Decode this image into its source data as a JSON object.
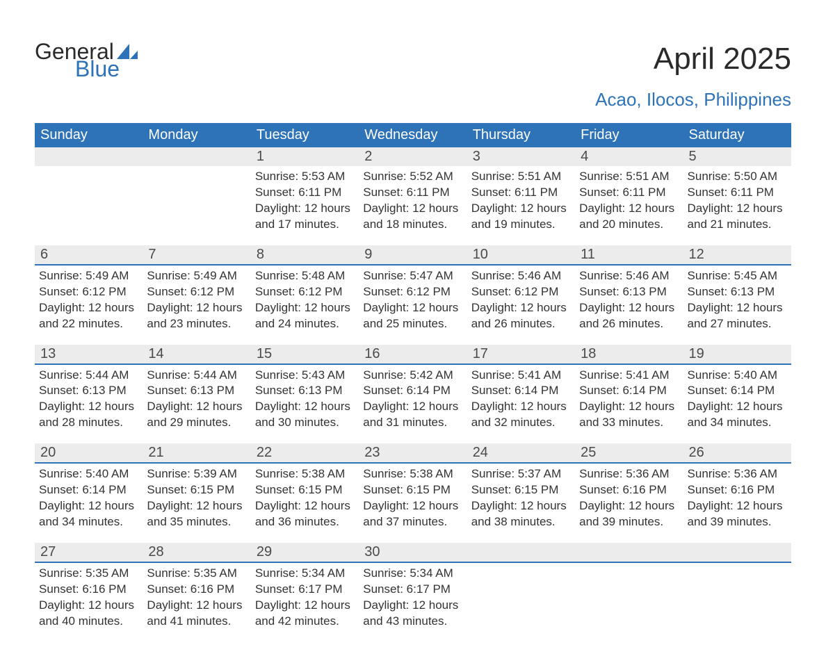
{
  "logo": {
    "word1": "General",
    "word2": "Blue",
    "accent_color": "#2e72b8",
    "text_color": "#2a2a2a"
  },
  "title": "April 2025",
  "location": "Acao, Ilocos, Philippines",
  "colors": {
    "header_bg": "#2e72b8",
    "header_text": "#ffffff",
    "daynum_bg": "#ececec",
    "row_divider": "#2e72b8",
    "body_text": "#333333",
    "page_bg": "#ffffff"
  },
  "typography": {
    "title_fontsize": 44,
    "location_fontsize": 26,
    "weekday_header_fontsize": 20,
    "daynum_fontsize": 20,
    "cell_fontsize": 17
  },
  "weekdays": [
    "Sunday",
    "Monday",
    "Tuesday",
    "Wednesday",
    "Thursday",
    "Friday",
    "Saturday"
  ],
  "weeks": [
    [
      {
        "num": "",
        "sunrise": "",
        "sunset": "",
        "daylight1": "",
        "daylight2": ""
      },
      {
        "num": "",
        "sunrise": "",
        "sunset": "",
        "daylight1": "",
        "daylight2": ""
      },
      {
        "num": "1",
        "sunrise": "Sunrise: 5:53 AM",
        "sunset": "Sunset: 6:11 PM",
        "daylight1": "Daylight: 12 hours",
        "daylight2": "and 17 minutes."
      },
      {
        "num": "2",
        "sunrise": "Sunrise: 5:52 AM",
        "sunset": "Sunset: 6:11 PM",
        "daylight1": "Daylight: 12 hours",
        "daylight2": "and 18 minutes."
      },
      {
        "num": "3",
        "sunrise": "Sunrise: 5:51 AM",
        "sunset": "Sunset: 6:11 PM",
        "daylight1": "Daylight: 12 hours",
        "daylight2": "and 19 minutes."
      },
      {
        "num": "4",
        "sunrise": "Sunrise: 5:51 AM",
        "sunset": "Sunset: 6:11 PM",
        "daylight1": "Daylight: 12 hours",
        "daylight2": "and 20 minutes."
      },
      {
        "num": "5",
        "sunrise": "Sunrise: 5:50 AM",
        "sunset": "Sunset: 6:11 PM",
        "daylight1": "Daylight: 12 hours",
        "daylight2": "and 21 minutes."
      }
    ],
    [
      {
        "num": "6",
        "sunrise": "Sunrise: 5:49 AM",
        "sunset": "Sunset: 6:12 PM",
        "daylight1": "Daylight: 12 hours",
        "daylight2": "and 22 minutes."
      },
      {
        "num": "7",
        "sunrise": "Sunrise: 5:49 AM",
        "sunset": "Sunset: 6:12 PM",
        "daylight1": "Daylight: 12 hours",
        "daylight2": "and 23 minutes."
      },
      {
        "num": "8",
        "sunrise": "Sunrise: 5:48 AM",
        "sunset": "Sunset: 6:12 PM",
        "daylight1": "Daylight: 12 hours",
        "daylight2": "and 24 minutes."
      },
      {
        "num": "9",
        "sunrise": "Sunrise: 5:47 AM",
        "sunset": "Sunset: 6:12 PM",
        "daylight1": "Daylight: 12 hours",
        "daylight2": "and 25 minutes."
      },
      {
        "num": "10",
        "sunrise": "Sunrise: 5:46 AM",
        "sunset": "Sunset: 6:12 PM",
        "daylight1": "Daylight: 12 hours",
        "daylight2": "and 26 minutes."
      },
      {
        "num": "11",
        "sunrise": "Sunrise: 5:46 AM",
        "sunset": "Sunset: 6:13 PM",
        "daylight1": "Daylight: 12 hours",
        "daylight2": "and 26 minutes."
      },
      {
        "num": "12",
        "sunrise": "Sunrise: 5:45 AM",
        "sunset": "Sunset: 6:13 PM",
        "daylight1": "Daylight: 12 hours",
        "daylight2": "and 27 minutes."
      }
    ],
    [
      {
        "num": "13",
        "sunrise": "Sunrise: 5:44 AM",
        "sunset": "Sunset: 6:13 PM",
        "daylight1": "Daylight: 12 hours",
        "daylight2": "and 28 minutes."
      },
      {
        "num": "14",
        "sunrise": "Sunrise: 5:44 AM",
        "sunset": "Sunset: 6:13 PM",
        "daylight1": "Daylight: 12 hours",
        "daylight2": "and 29 minutes."
      },
      {
        "num": "15",
        "sunrise": "Sunrise: 5:43 AM",
        "sunset": "Sunset: 6:13 PM",
        "daylight1": "Daylight: 12 hours",
        "daylight2": "and 30 minutes."
      },
      {
        "num": "16",
        "sunrise": "Sunrise: 5:42 AM",
        "sunset": "Sunset: 6:14 PM",
        "daylight1": "Daylight: 12 hours",
        "daylight2": "and 31 minutes."
      },
      {
        "num": "17",
        "sunrise": "Sunrise: 5:41 AM",
        "sunset": "Sunset: 6:14 PM",
        "daylight1": "Daylight: 12 hours",
        "daylight2": "and 32 minutes."
      },
      {
        "num": "18",
        "sunrise": "Sunrise: 5:41 AM",
        "sunset": "Sunset: 6:14 PM",
        "daylight1": "Daylight: 12 hours",
        "daylight2": "and 33 minutes."
      },
      {
        "num": "19",
        "sunrise": "Sunrise: 5:40 AM",
        "sunset": "Sunset: 6:14 PM",
        "daylight1": "Daylight: 12 hours",
        "daylight2": "and 34 minutes."
      }
    ],
    [
      {
        "num": "20",
        "sunrise": "Sunrise: 5:40 AM",
        "sunset": "Sunset: 6:14 PM",
        "daylight1": "Daylight: 12 hours",
        "daylight2": "and 34 minutes."
      },
      {
        "num": "21",
        "sunrise": "Sunrise: 5:39 AM",
        "sunset": "Sunset: 6:15 PM",
        "daylight1": "Daylight: 12 hours",
        "daylight2": "and 35 minutes."
      },
      {
        "num": "22",
        "sunrise": "Sunrise: 5:38 AM",
        "sunset": "Sunset: 6:15 PM",
        "daylight1": "Daylight: 12 hours",
        "daylight2": "and 36 minutes."
      },
      {
        "num": "23",
        "sunrise": "Sunrise: 5:38 AM",
        "sunset": "Sunset: 6:15 PM",
        "daylight1": "Daylight: 12 hours",
        "daylight2": "and 37 minutes."
      },
      {
        "num": "24",
        "sunrise": "Sunrise: 5:37 AM",
        "sunset": "Sunset: 6:15 PM",
        "daylight1": "Daylight: 12 hours",
        "daylight2": "and 38 minutes."
      },
      {
        "num": "25",
        "sunrise": "Sunrise: 5:36 AM",
        "sunset": "Sunset: 6:16 PM",
        "daylight1": "Daylight: 12 hours",
        "daylight2": "and 39 minutes."
      },
      {
        "num": "26",
        "sunrise": "Sunrise: 5:36 AM",
        "sunset": "Sunset: 6:16 PM",
        "daylight1": "Daylight: 12 hours",
        "daylight2": "and 39 minutes."
      }
    ],
    [
      {
        "num": "27",
        "sunrise": "Sunrise: 5:35 AM",
        "sunset": "Sunset: 6:16 PM",
        "daylight1": "Daylight: 12 hours",
        "daylight2": "and 40 minutes."
      },
      {
        "num": "28",
        "sunrise": "Sunrise: 5:35 AM",
        "sunset": "Sunset: 6:16 PM",
        "daylight1": "Daylight: 12 hours",
        "daylight2": "and 41 minutes."
      },
      {
        "num": "29",
        "sunrise": "Sunrise: 5:34 AM",
        "sunset": "Sunset: 6:17 PM",
        "daylight1": "Daylight: 12 hours",
        "daylight2": "and 42 minutes."
      },
      {
        "num": "30",
        "sunrise": "Sunrise: 5:34 AM",
        "sunset": "Sunset: 6:17 PM",
        "daylight1": "Daylight: 12 hours",
        "daylight2": "and 43 minutes."
      },
      {
        "num": "",
        "sunrise": "",
        "sunset": "",
        "daylight1": "",
        "daylight2": ""
      },
      {
        "num": "",
        "sunrise": "",
        "sunset": "",
        "daylight1": "",
        "daylight2": ""
      },
      {
        "num": "",
        "sunrise": "",
        "sunset": "",
        "daylight1": "",
        "daylight2": ""
      }
    ]
  ]
}
